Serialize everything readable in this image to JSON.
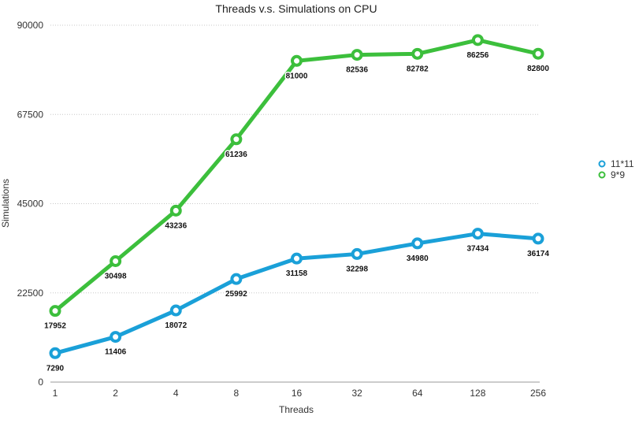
{
  "chart_data": {
    "type": "line",
    "title": "Threads v.s. Simulations on CPU",
    "xlabel": "Threads",
    "ylabel": "Simulations",
    "categories": [
      "1",
      "2",
      "4",
      "8",
      "16",
      "32",
      "64",
      "128",
      "256"
    ],
    "ylim": [
      0,
      90000
    ],
    "yticks": [
      "0",
      "22500",
      "45000",
      "67500",
      "90000"
    ],
    "grid": true,
    "legend_position": "right",
    "series": [
      {
        "name": "11*11",
        "color": "#1aa0d8",
        "values": [
          7290,
          11406,
          18072,
          25992,
          31158,
          32298,
          34980,
          37434,
          36174
        ]
      },
      {
        "name": "9*9",
        "color": "#3cbf3c",
        "values": [
          17952,
          30498,
          43236,
          61236,
          81000,
          82536,
          82782,
          86256,
          82800
        ]
      }
    ]
  }
}
